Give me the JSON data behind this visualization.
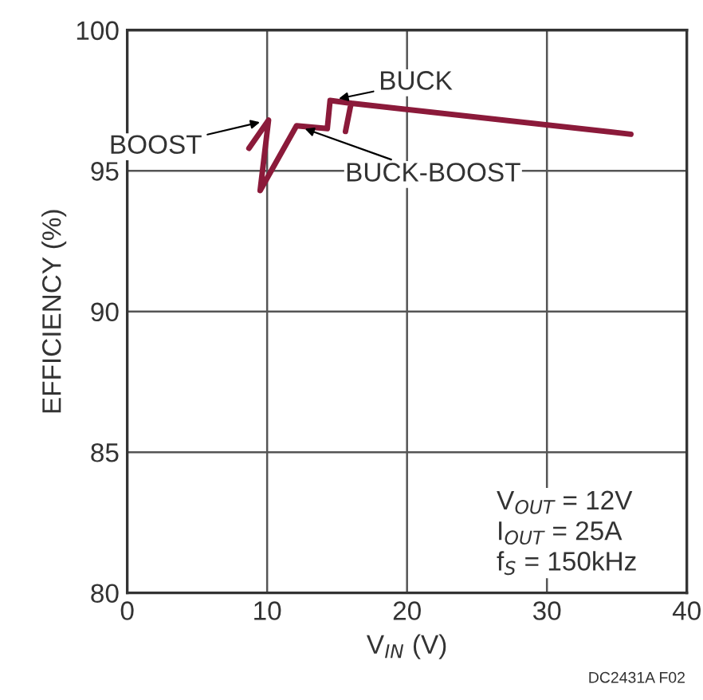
{
  "chart_data": {
    "type": "line",
    "xlabel": "V$_{IN}$ (V)",
    "ylabel": "EFFICIENCY (%)",
    "x": [
      8.7,
      10.1,
      9.5,
      12.1,
      14.3,
      14.5,
      16.0,
      15.6,
      16.0,
      36.0
    ],
    "series": [
      {
        "color": "#8b1a3a",
        "values": [
          95.8,
          96.8,
          94.3,
          96.6,
          96.5,
          97.5,
          97.4,
          96.4,
          97.4,
          96.3
        ]
      }
    ],
    "xlim": [
      0,
      40
    ],
    "ylim": [
      80,
      100
    ],
    "xticks": [
      0,
      10,
      20,
      30,
      40
    ],
    "yticks": [
      80,
      85,
      90,
      95,
      100
    ],
    "grid": true,
    "marker": "none",
    "line_style": "solid",
    "annotations": [
      {
        "text": "BUCK",
        "x": 14.5,
        "y": 97.5
      },
      {
        "text": "BOOST",
        "x": 10.1,
        "y": 96.8
      },
      {
        "text": "BUCK-BOOST",
        "x": 12.1,
        "y": 96.6
      },
      "V$_{OUT}$ = 12V\nI$_{OUT}$ = 25A\nf$_{S}$ = 150kHz",
      "DC2431A F02"
    ]
  }
}
